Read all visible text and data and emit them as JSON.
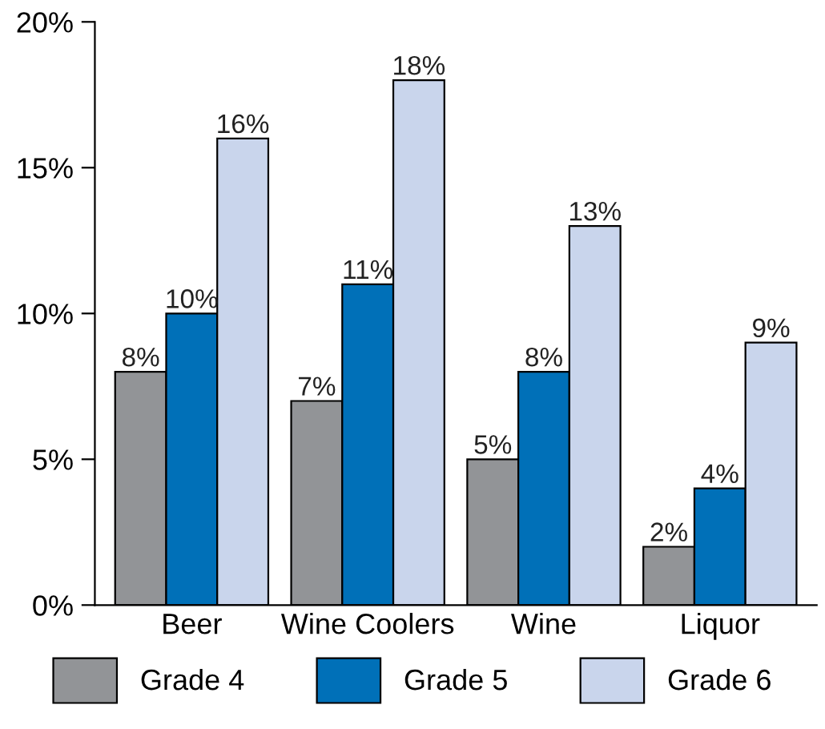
{
  "chart_data": {
    "type": "bar",
    "categories": [
      "Beer",
      "Wine Coolers",
      "Wine",
      "Liquor"
    ],
    "series": [
      {
        "name": "Grade 4",
        "color": "#929497",
        "values": [
          8,
          7,
          5,
          2
        ],
        "value_labels": [
          "8%",
          "7%",
          "5%",
          "2%"
        ]
      },
      {
        "name": "Grade 5",
        "color": "#0070b8",
        "values": [
          10,
          11,
          8,
          4
        ],
        "value_labels": [
          "10%",
          "11%",
          "8%",
          "4%"
        ]
      },
      {
        "name": "Grade 6",
        "color": "#c9d5ec",
        "values": [
          16,
          18,
          13,
          9
        ],
        "value_labels": [
          "16%",
          "18%",
          "13%",
          "9%"
        ]
      }
    ],
    "ylim": [
      0,
      20
    ],
    "yticks": [
      {
        "value": 0,
        "label": "0%"
      },
      {
        "value": 5,
        "label": "5%"
      },
      {
        "value": 10,
        "label": "10%"
      },
      {
        "value": 15,
        "label": "15%"
      },
      {
        "value": 20,
        "label": "20%"
      }
    ],
    "grid": false,
    "legend": "bottom"
  }
}
